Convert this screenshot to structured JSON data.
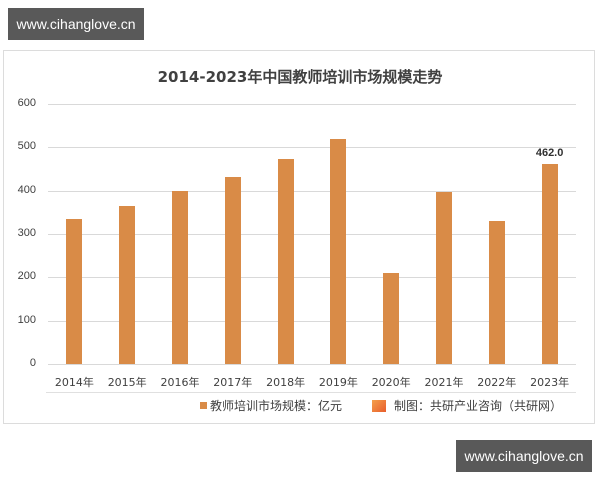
{
  "watermark": {
    "top_text": "www.cihanglove.cn",
    "bottom_text": "www.cihanglove.cn"
  },
  "chart_data": {
    "type": "bar",
    "title": "2014-2023年中国教师培训市场规模走势",
    "categories": [
      "2014年",
      "2015年",
      "2016年",
      "2017年",
      "2018年",
      "2019年",
      "2020年",
      "2021年",
      "2022年",
      "2023年"
    ],
    "series": [
      {
        "name": "教师培训市场规模：亿元",
        "values": [
          335,
          365,
          399,
          432,
          473,
          519,
          210,
          397,
          330,
          462
        ],
        "color": "#d98b47"
      }
    ],
    "data_labels": [
      {
        "category": "2023年",
        "text": "462.0"
      }
    ],
    "yticks": [
      "0",
      "100",
      "200",
      "300",
      "400",
      "500",
      "600"
    ],
    "ylim": [
      0,
      600
    ],
    "xlabel": "",
    "ylabel": "",
    "grid": true,
    "legend_position": "bottom"
  },
  "legend": {
    "series_label": "教师培训市场规模：亿元",
    "source": "制图：共研产业咨询（共研网）"
  }
}
